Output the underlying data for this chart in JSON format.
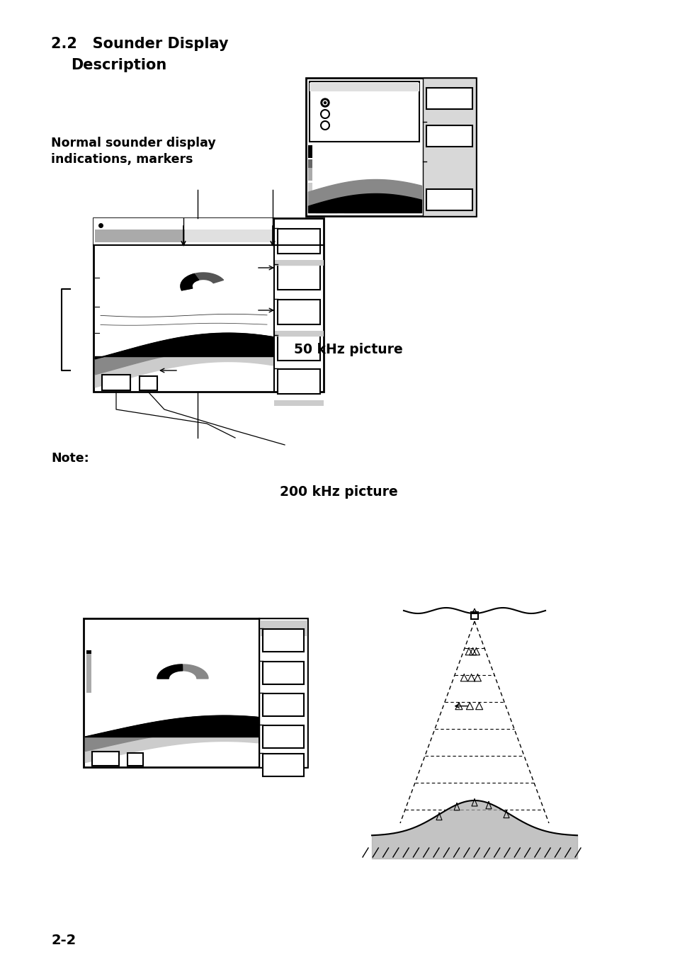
{
  "title_line1": "2.2   Sounder Display",
  "title_line2": "        Description",
  "subtitle1_line1": "Normal sounder display",
  "subtitle1_line2": "indications, markers",
  "label_50khz": "50 kHz picture",
  "label_200khz": "200 kHz picture",
  "note_label": "Note:",
  "page_number": "2-2",
  "bg_color": "#ffffff",
  "black": "#000000",
  "gray_dark": "#555555",
  "gray_medium": "#888888",
  "gray_light": "#bbbbbb",
  "gray_lighter": "#dddddd",
  "gray_bar": "#cccccc"
}
